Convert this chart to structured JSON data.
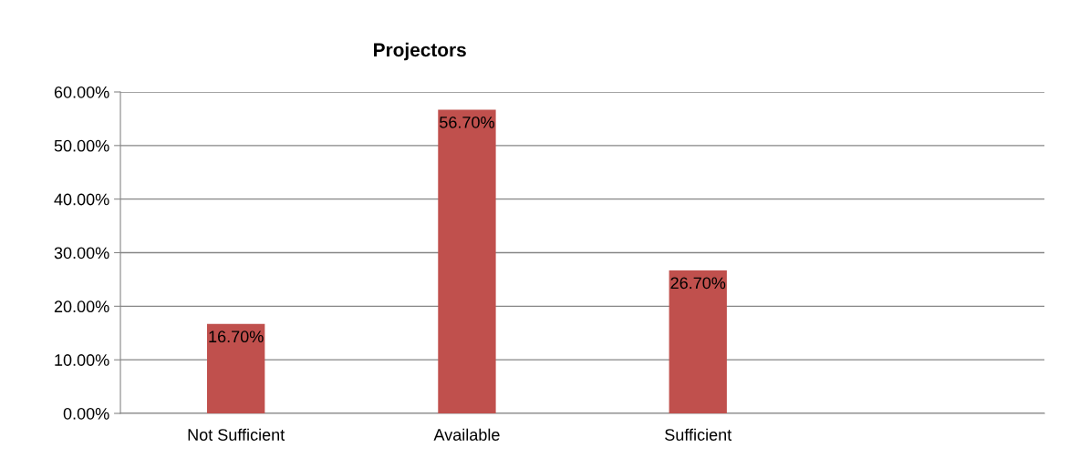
{
  "chart_data": {
    "type": "bar",
    "title": "Projectors",
    "categories": [
      "Not Sufficient",
      "Available",
      "Sufficient",
      null
    ],
    "values": [
      16.7,
      56.7,
      26.7,
      null
    ],
    "value_labels": [
      "16.70%",
      "56.70%",
      "26.70%",
      null
    ],
    "color": "#c0504d",
    "ylim": [
      0,
      60
    ],
    "yticks": [
      {
        "value": 0,
        "label": "0.00%"
      },
      {
        "value": 10,
        "label": "10.00%"
      },
      {
        "value": 20,
        "label": "20.00%"
      },
      {
        "value": 30,
        "label": "30.00%"
      },
      {
        "value": 40,
        "label": "40.00%"
      },
      {
        "value": 50,
        "label": "50.00%"
      },
      {
        "value": 60,
        "label": "60.00%"
      }
    ],
    "grid": "y",
    "legend": false
  }
}
